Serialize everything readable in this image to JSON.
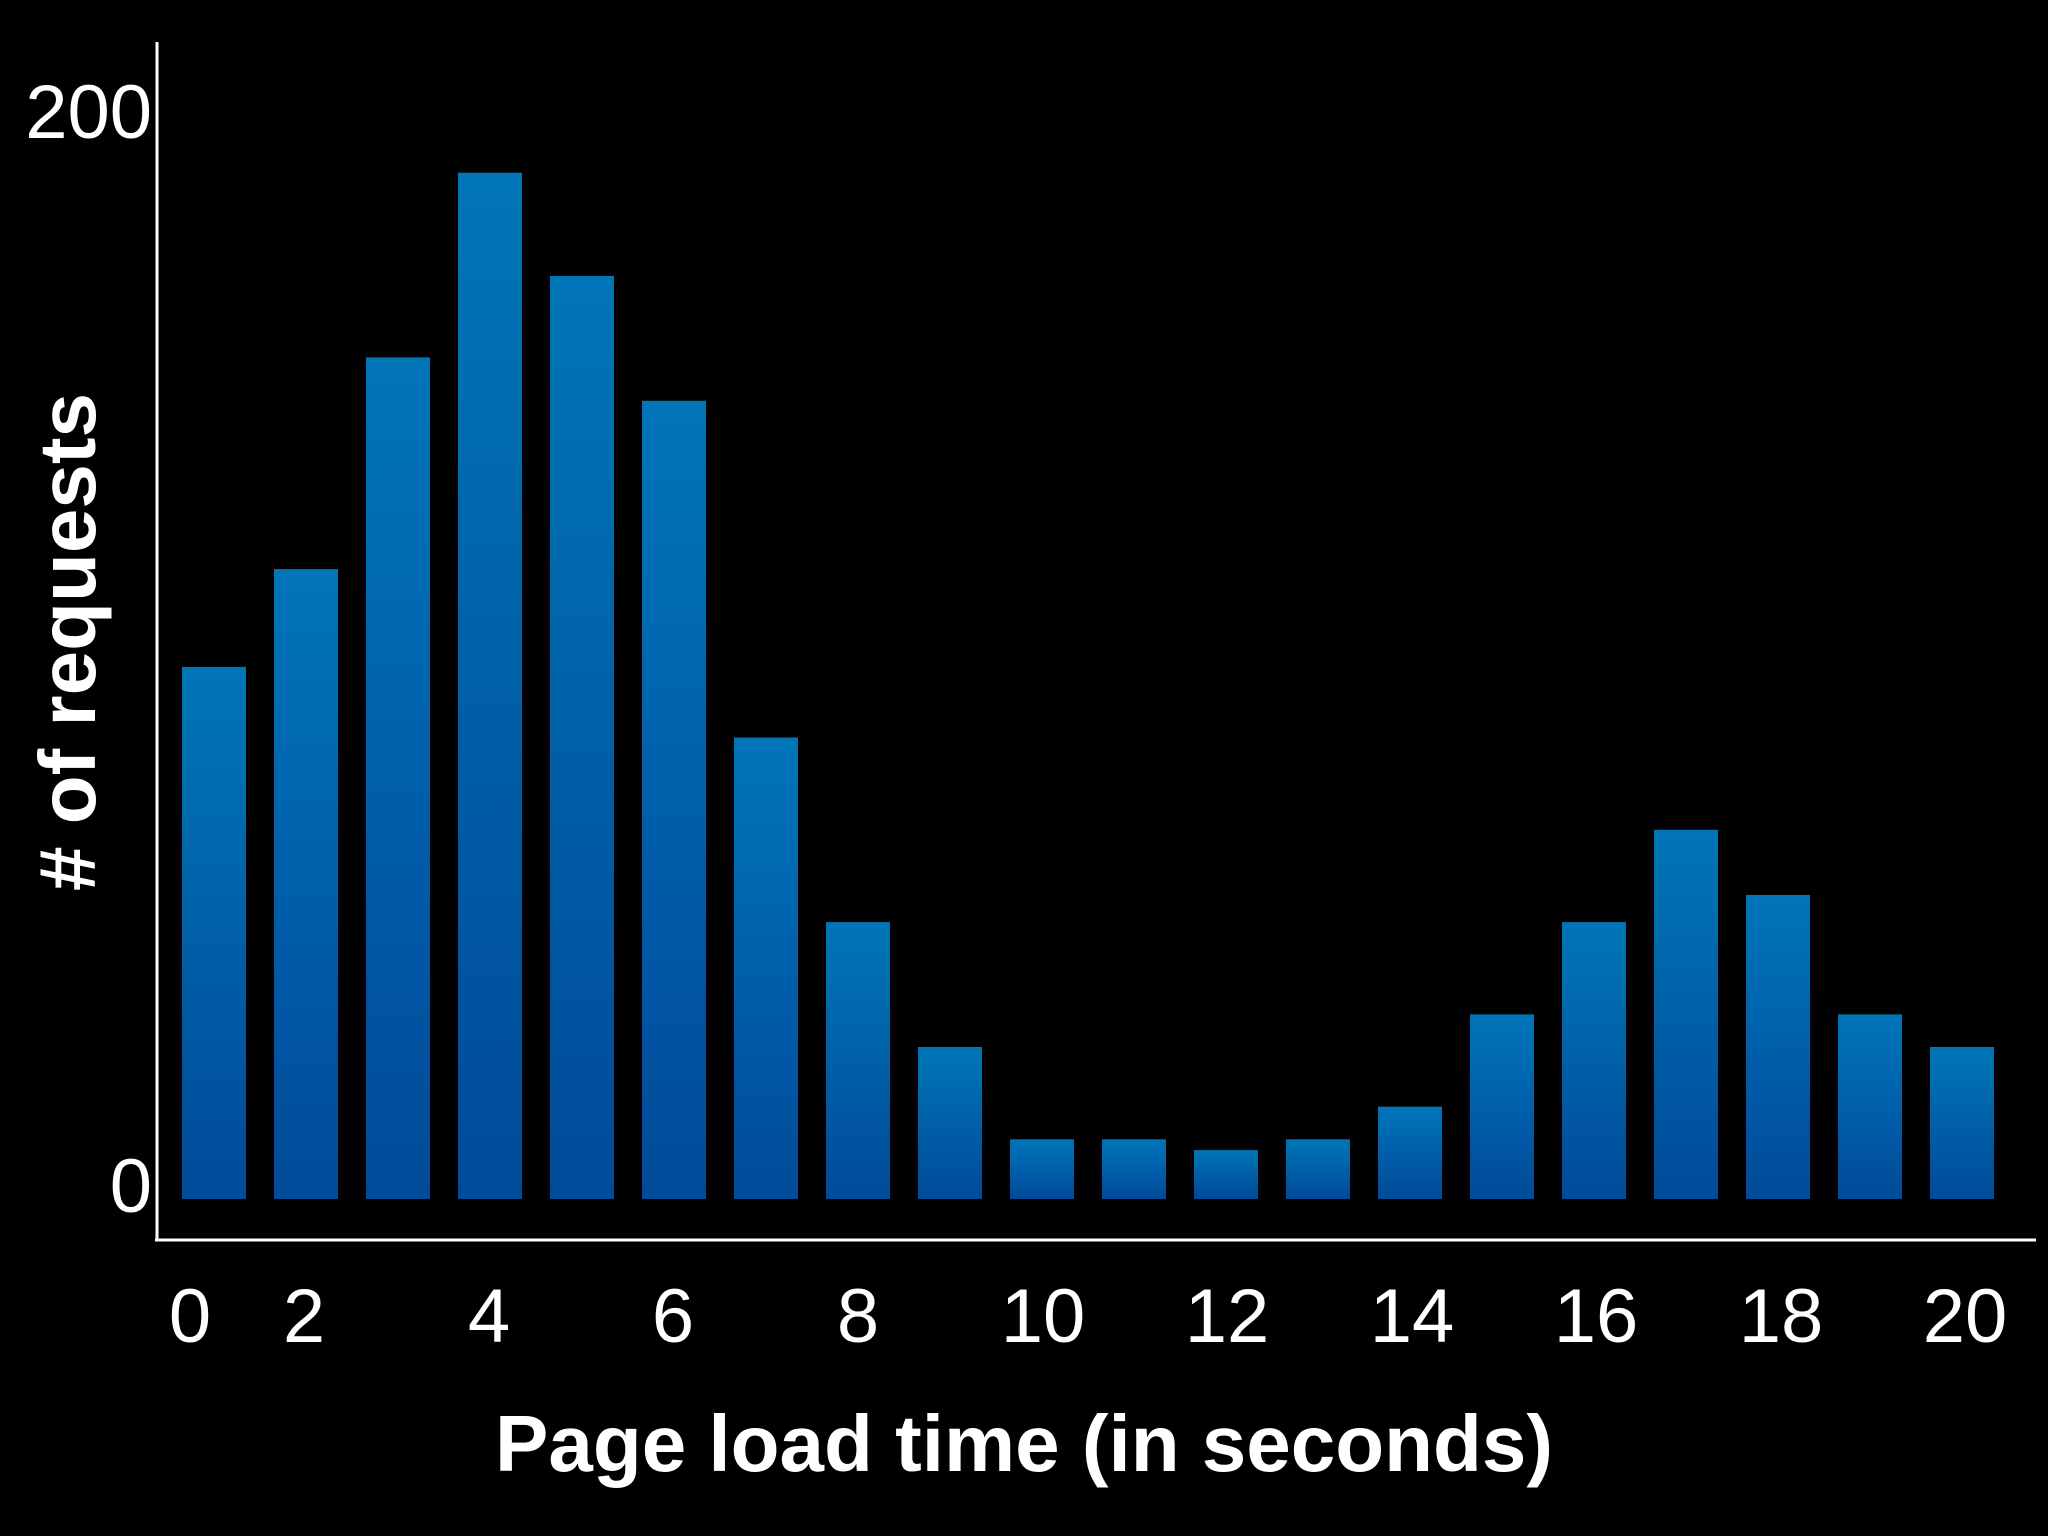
{
  "chart_data": {
    "type": "bar",
    "title": "",
    "xlabel": "Page load time (in seconds)",
    "ylabel": "# of requests",
    "x_ticks": [
      "0",
      "2",
      "4",
      "6",
      "8",
      "10",
      "12",
      "14",
      "16",
      "18",
      "20"
    ],
    "y_ticks": [
      "0",
      "200"
    ],
    "ylim": [
      0,
      200
    ],
    "bar_color": "#0066b3",
    "background": "#000000",
    "grid": false,
    "x": [
      1,
      2,
      3,
      4,
      5,
      6,
      7,
      8,
      9,
      10,
      11,
      12,
      13,
      14,
      15,
      16,
      17,
      18,
      19,
      20
    ],
    "values": [
      98,
      116,
      155,
      189,
      170,
      147,
      85,
      51,
      28,
      11,
      11,
      9,
      11,
      17,
      34,
      51,
      68,
      56,
      34,
      28
    ]
  }
}
